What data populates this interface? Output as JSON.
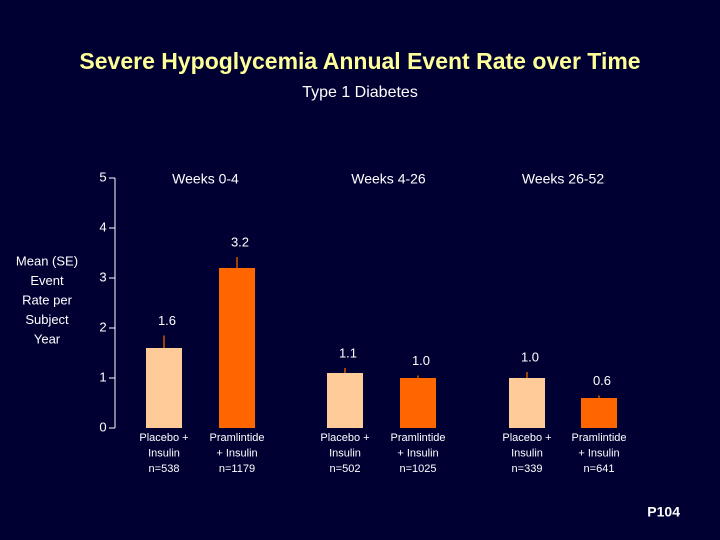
{
  "chart_data": {
    "type": "bar",
    "title": "Severe Hypoglycemia Annual Event Rate over Time",
    "subtitle": "Type 1 Diabetes",
    "y_label": [
      "Mean (SE)",
      "Event",
      "Rate per",
      "Subject",
      "Year"
    ],
    "groups": [
      "Weeks 0-4",
      "Weeks 4-26",
      "Weeks 26-52"
    ],
    "categories": [
      [
        "Placebo +",
        "Insulin",
        "n=538"
      ],
      [
        "Pramlintide",
        "+ Insulin",
        "n=1179"
      ],
      [
        "Placebo +",
        "Insulin",
        "n=502"
      ],
      [
        "Pramlintide",
        "+ Insulin",
        "n=1025"
      ],
      [
        "Placebo +",
        "Insulin",
        "n=339"
      ],
      [
        "Pramlintide",
        "+ Insulin",
        "n=641"
      ]
    ],
    "values": [
      1.6,
      3.2,
      1.1,
      1,
      1,
      0.6
    ],
    "value_labels": [
      "1.6",
      "3.2",
      "1.1",
      "1.0",
      "1.0",
      "0.6"
    ],
    "errors": [
      0.25,
      0.22,
      0.1,
      0.05,
      0.12,
      0.05
    ],
    "colors": [
      "#ffcc99",
      "#ff6600",
      "#ffcc99",
      "#ff6600",
      "#ffcc99",
      "#ff6600"
    ],
    "ylim": [
      0,
      5
    ],
    "yticks": [
      0,
      1,
      2,
      3,
      4,
      5
    ],
    "footnote": "P104"
  }
}
